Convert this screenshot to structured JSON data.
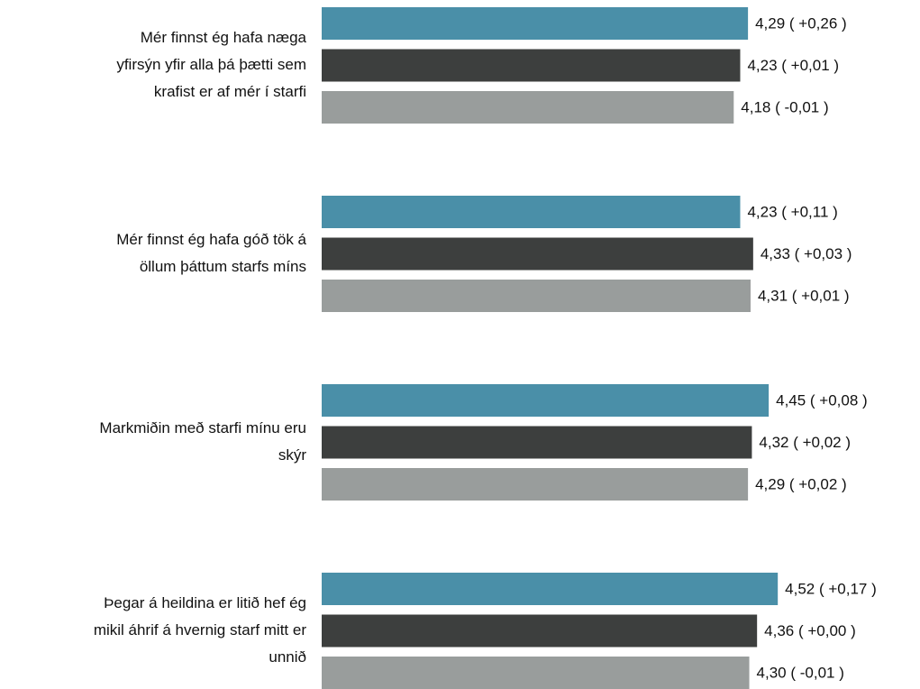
{
  "chart_data": {
    "type": "bar",
    "orientation": "horizontal",
    "categories": [
      [
        "Mér finnst ég hafa næga",
        "yfirsýn yfir alla þá þætti sem",
        "krafist er af mér í starfi"
      ],
      [
        "Mér finnst ég hafa góð tök á",
        "öllum þáttum starfs míns"
      ],
      [
        "Markmiðin með starfi mínu eru",
        "skýr"
      ],
      [
        "Þegar á heildina er litið hef ég",
        "mikil áhrif á hvernig starf mitt er",
        "unnið"
      ]
    ],
    "series": [
      {
        "color": "#4a8fa8",
        "values": [
          4.29,
          4.23,
          4.45,
          4.52
        ],
        "value_labels": [
          "4,29 ( +0,26 )",
          "4,23 ( +0,11 )",
          "4,45 ( +0,08 )",
          "4,52 ( +0,17 )"
        ]
      },
      {
        "color": "#3d3f3e",
        "values": [
          4.23,
          4.33,
          4.32,
          4.36
        ],
        "value_labels": [
          "4,23 ( +0,01 )",
          "4,33 ( +0,03 )",
          "4,32 ( +0,02 )",
          "4,36 ( +0,00 )"
        ]
      },
      {
        "color": "#999d9c",
        "values": [
          4.18,
          4.31,
          4.29,
          4.3
        ],
        "value_labels": [
          "4,18 ( -0,01 )",
          "4,31 ( +0,01 )",
          "4,29 ( +0,02 )",
          "4,30 ( -0,01 )"
        ]
      }
    ],
    "xlim": [
      1,
      5
    ]
  }
}
